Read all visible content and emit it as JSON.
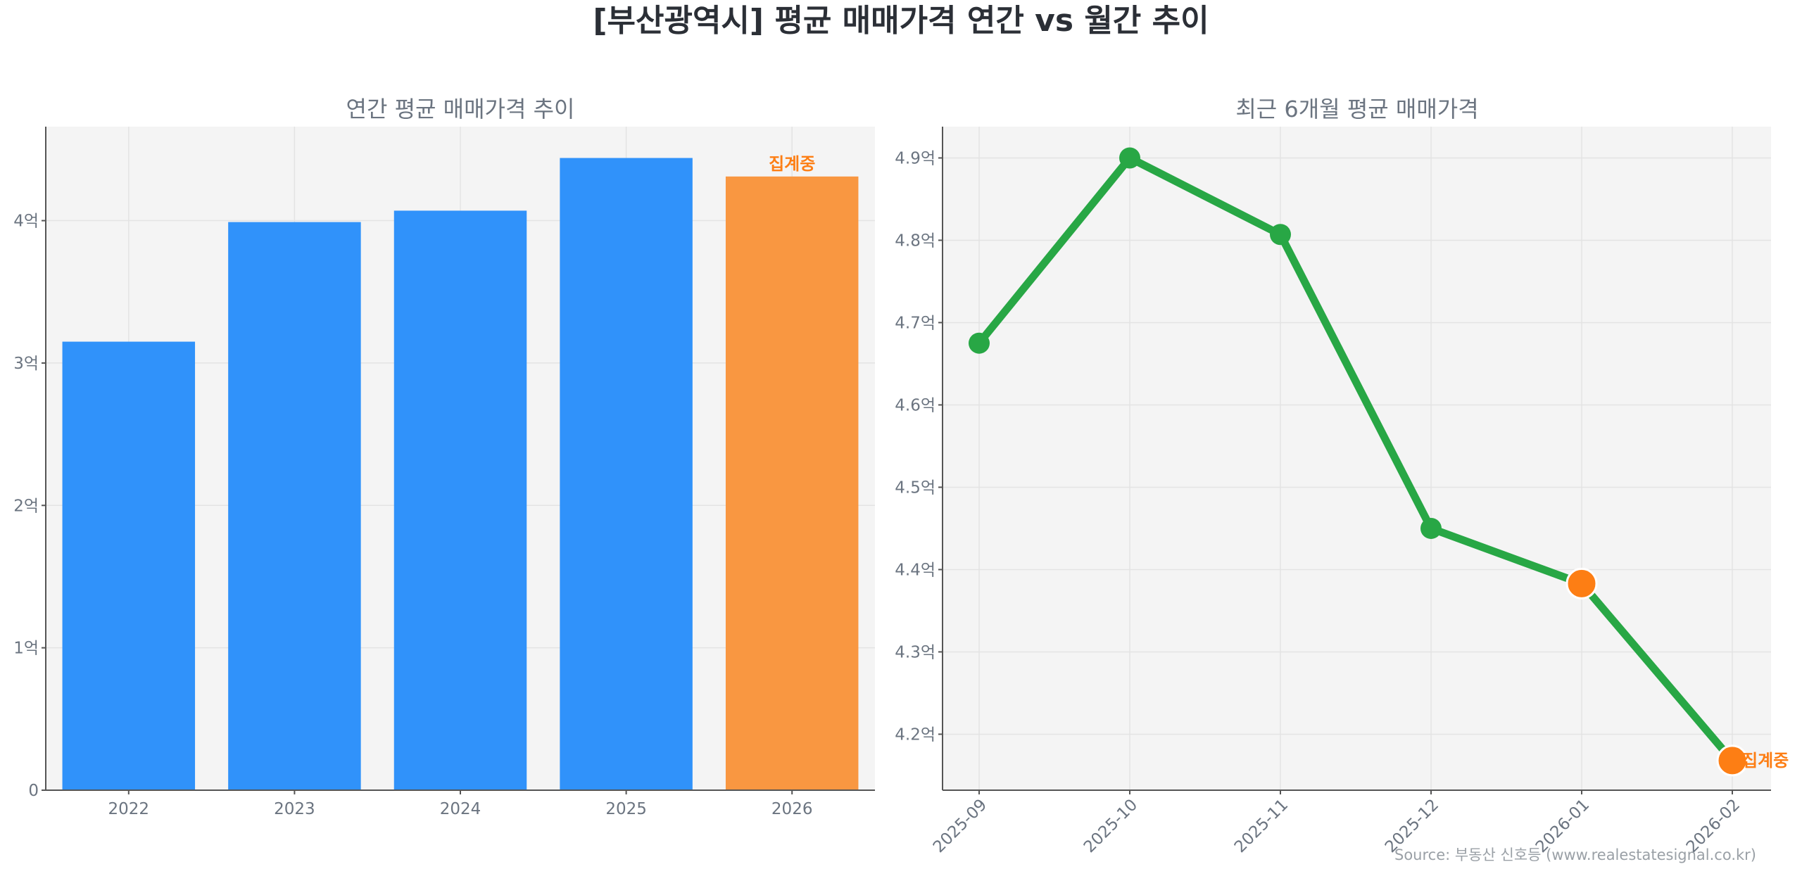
{
  "title": "[부산광역시] 평균 매매가격 연간 vs 월간 추이",
  "source": "Source: 부동산 신호등 (www.realestatesignal.co.kr)",
  "chart_data": [
    {
      "type": "bar",
      "title": "연간 평균 매매가격 추이",
      "categories": [
        "2022",
        "2023",
        "2024",
        "2025",
        "2026"
      ],
      "values": [
        3.15,
        3.99,
        4.07,
        4.44,
        4.31
      ],
      "unit_suffix": "억",
      "yticks": [
        0,
        1,
        2,
        3,
        4
      ],
      "ytick_labels": [
        "0",
        "1억",
        "2억",
        "3억",
        "4억"
      ],
      "ylim": [
        0,
        4.66
      ],
      "grid": true,
      "colors": [
        "#3092fa",
        "#3092fa",
        "#3092fa",
        "#3092fa",
        "#f99741"
      ],
      "annotation": {
        "category": "2026",
        "text": "집계중"
      }
    },
    {
      "type": "line",
      "title": "최근 6개월 평균 매매가격",
      "x": [
        "2025-09",
        "2025-10",
        "2025-11",
        "2025-12",
        "2026-01",
        "2026-02"
      ],
      "y": [
        4.675,
        4.9,
        4.807,
        4.45,
        4.383,
        4.168
      ],
      "yticks": [
        4.2,
        4.3,
        4.4,
        4.5,
        4.6,
        4.7,
        4.8,
        4.9
      ],
      "ytick_labels": [
        "4.2억",
        "4.3억",
        "4.4억",
        "4.5억",
        "4.6억",
        "4.7억",
        "4.8억",
        "4.9억"
      ],
      "ylim": [
        4.132,
        4.938
      ],
      "grid": true,
      "line_color": "#28a745",
      "highlight_color": "#fd7e14",
      "highlight_points": [
        "2026-01",
        "2026-02"
      ],
      "annotation": {
        "x": "2026-02",
        "text": "집계중"
      }
    }
  ]
}
